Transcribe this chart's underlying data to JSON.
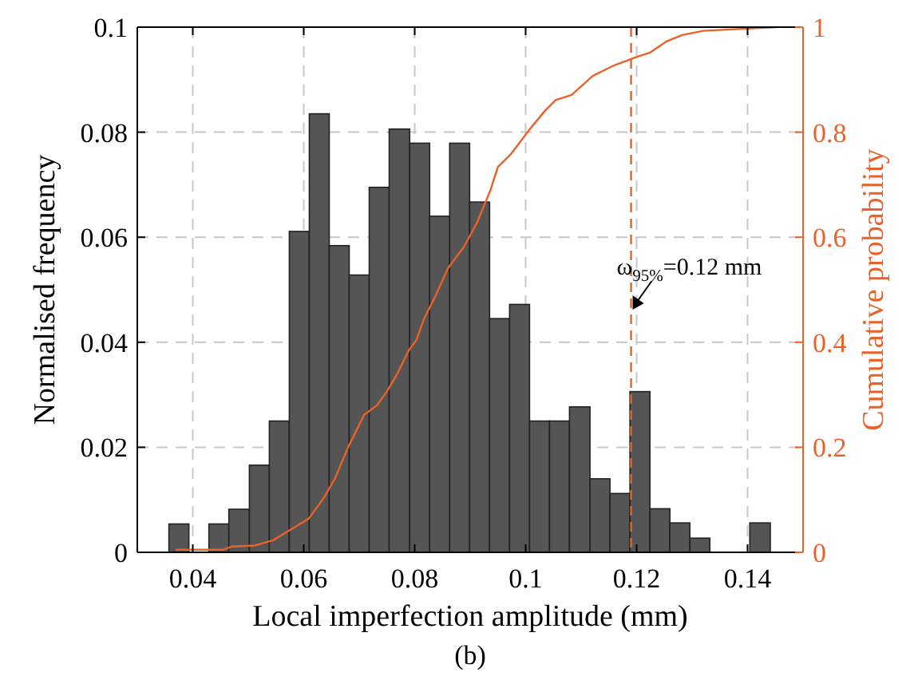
{
  "chart_data": {
    "type": "histogram",
    "xlabel": "Local imperfection amplitude (mm)",
    "ylabel": "Normalised frequency",
    "y2label": "Cumulative probability",
    "xlim": [
      0.03,
      0.15
    ],
    "xticks": [
      0.04,
      0.06,
      0.08,
      0.1,
      0.12,
      0.14
    ],
    "ylim": [
      0,
      0.1
    ],
    "yticks": [
      0,
      0.02,
      0.04,
      0.06,
      0.08,
      0.1
    ],
    "y2lim": [
      0,
      1
    ],
    "y2ticks": [
      0,
      0.2,
      0.4,
      0.6,
      0.8,
      1
    ],
    "grid": true,
    "series": [
      {
        "color": "#555555",
        "bins": [
          0.0357,
          0.0393,
          0.0429,
          0.0465,
          0.0502,
          0.0538,
          0.0574,
          0.061,
          0.0646,
          0.0682,
          0.0718,
          0.0754,
          0.0791,
          0.0827,
          0.0863,
          0.0899,
          0.0935,
          0.0971,
          0.1007,
          0.1043,
          0.1079,
          0.1116,
          0.1152,
          0.1188,
          0.1224,
          0.126,
          0.1296,
          0.1332,
          0.1404,
          0.1441
        ],
        "values": [
          0.0054,
          0,
          0.0054,
          0.0082,
          0.0166,
          0.025,
          0.0611,
          0.0835,
          0.0584,
          0.0528,
          0.0695,
          0.0806,
          0.0779,
          0.064,
          0.0779,
          0.0667,
          0.0445,
          0.0472,
          0.025,
          0.025,
          0.0277,
          0.014,
          0.0112,
          0.0306,
          0.0083,
          0.0056,
          0.0027,
          0,
          0.0056
        ]
      },
      {
        "type": "line",
        "axis": "y2",
        "color": "#e8622a",
        "x": [
          0.0369,
          0.0455,
          0.047,
          0.0512,
          0.0545,
          0.057,
          0.0609,
          0.0637,
          0.0656,
          0.068,
          0.0709,
          0.0732,
          0.0751,
          0.077,
          0.0789,
          0.0803,
          0.0817,
          0.0836,
          0.086,
          0.0889,
          0.0912,
          0.0936,
          0.095,
          0.0974,
          0.1007,
          0.1035,
          0.1054,
          0.1083,
          0.1121,
          0.1159,
          0.1197,
          0.1225,
          0.1254,
          0.1282,
          0.132,
          0.1377,
          0.1453
        ],
        "values": [
          0.005,
          0.005,
          0.011,
          0.013,
          0.023,
          0.039,
          0.064,
          0.105,
          0.14,
          0.2,
          0.262,
          0.28,
          0.308,
          0.343,
          0.384,
          0.404,
          0.445,
          0.485,
          0.541,
          0.582,
          0.627,
          0.688,
          0.734,
          0.759,
          0.805,
          0.841,
          0.861,
          0.871,
          0.907,
          0.927,
          0.942,
          0.952,
          0.973,
          0.985,
          0.993,
          0.996,
          1.0
        ]
      }
    ],
    "ref_lines": [
      {
        "axis": "x",
        "value": 0.119,
        "label": "ω$_{95%}$=0.12 mm",
        "color": "#e8622a",
        "line_style": "dashed"
      }
    ],
    "annotations": [
      "(b)"
    ]
  }
}
